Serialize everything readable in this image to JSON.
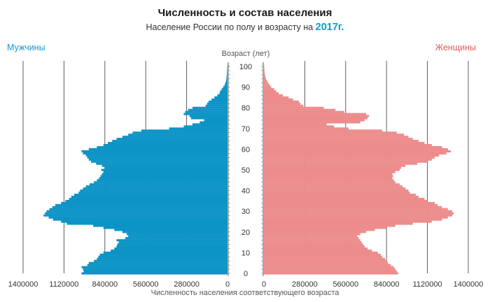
{
  "chart_data": {
    "type": "bar",
    "orientation": "horizontal",
    "layout": "population-pyramid",
    "title": "Численность и состав населения",
    "subtitle_prefix": "Население России по полу и возрасту на ",
    "subtitle_year": "2017г.",
    "male_label": "Мужчины",
    "female_label": "Женщины",
    "y_axis_label": "Возраст (лет)",
    "x_axis_label": "Численность населения соответствующего возраста",
    "age_ticks": [
      0,
      10,
      20,
      30,
      40,
      50,
      60,
      70,
      80,
      90,
      100
    ],
    "male_ticks": [
      1400000,
      1120000,
      840000,
      560000,
      280000,
      0
    ],
    "male_tick_labels": [
      "1400000",
      "1120000",
      "840000",
      "560000",
      "280000",
      "0"
    ],
    "female_ticks": [
      0,
      280000,
      560000,
      840000,
      1120000,
      1400000
    ],
    "female_tick_labels": [
      "0",
      "280000",
      "560000",
      "840000",
      "1120000",
      "1400000"
    ],
    "xlim": [
      0,
      1400000
    ],
    "ylim": [
      0,
      100
    ],
    "grid": "vertical",
    "colors": {
      "male": "#0c94c6",
      "female": "#ec8c8c",
      "male_label": "#1597c9",
      "female_label": "#dd5b5b",
      "year": "#1597c9"
    },
    "ages": [
      0,
      1,
      2,
      3,
      4,
      5,
      6,
      7,
      8,
      9,
      10,
      11,
      12,
      13,
      14,
      15,
      16,
      17,
      18,
      19,
      20,
      21,
      22,
      23,
      24,
      25,
      26,
      27,
      28,
      29,
      30,
      31,
      32,
      33,
      34,
      35,
      36,
      37,
      38,
      39,
      40,
      41,
      42,
      43,
      44,
      45,
      46,
      47,
      48,
      49,
      50,
      51,
      52,
      53,
      54,
      55,
      56,
      57,
      58,
      59,
      60,
      61,
      62,
      63,
      64,
      65,
      66,
      67,
      68,
      69,
      70,
      71,
      72,
      73,
      74,
      75,
      76,
      77,
      78,
      79,
      80,
      81,
      82,
      83,
      84,
      85,
      86,
      87,
      88,
      89,
      90,
      91,
      92,
      93,
      94,
      95,
      96,
      97,
      98,
      99,
      100
    ],
    "series": [
      {
        "name": "Мужчины",
        "values": [
          1000000,
          985000,
          990000,
          1000000,
          960000,
          950000,
          915000,
          895000,
          885000,
          875000,
          850000,
          800000,
          775000,
          760000,
          755000,
          745000,
          760000,
          700000,
          680000,
          690000,
          720000,
          775000,
          850000,
          920000,
          1100000,
          1140000,
          1195000,
          1225000,
          1260000,
          1250000,
          1240000,
          1220000,
          1200000,
          1180000,
          1140000,
          1110000,
          1085000,
          1070000,
          1050000,
          1020000,
          1010000,
          990000,
          970000,
          945000,
          915000,
          895000,
          880000,
          870000,
          860000,
          850000,
          865000,
          840000,
          860000,
          900000,
          935000,
          950000,
          960000,
          970000,
          990000,
          1000000,
          950000,
          895000,
          850000,
          820000,
          790000,
          760000,
          720000,
          680000,
          650000,
          590000,
          400000,
          300000,
          240000,
          190000,
          160000,
          250000,
          260000,
          300000,
          290000,
          270000,
          240000,
          150000,
          140000,
          130000,
          110000,
          90000,
          70000,
          55000,
          50000,
          40000,
          30000,
          20000,
          15000,
          10000,
          8000,
          6000,
          5000,
          4000,
          3000,
          2000,
          1000
        ]
      },
      {
        "name": "Женщины",
        "values": [
          920000,
          910000,
          900000,
          890000,
          870000,
          850000,
          840000,
          830000,
          810000,
          800000,
          780000,
          740000,
          710000,
          690000,
          680000,
          670000,
          660000,
          650000,
          640000,
          660000,
          700000,
          760000,
          840000,
          900000,
          1020000,
          1150000,
          1220000,
          1260000,
          1290000,
          1300000,
          1290000,
          1260000,
          1220000,
          1190000,
          1170000,
          1120000,
          1100000,
          1060000,
          1040000,
          1000000,
          990000,
          970000,
          950000,
          930000,
          900000,
          890000,
          880000,
          885000,
          880000,
          900000,
          930000,
          940000,
          970000,
          1050000,
          1120000,
          1150000,
          1170000,
          1200000,
          1250000,
          1280000,
          1260000,
          1220000,
          1150000,
          1100000,
          1060000,
          1020000,
          990000,
          960000,
          910000,
          810000,
          580000,
          480000,
          430000,
          660000,
          690000,
          710000,
          720000,
          700000,
          550000,
          490000,
          410000,
          270000,
          250000,
          240000,
          200000,
          170000,
          130000,
          100000,
          85000,
          70000,
          50000,
          40000,
          30000,
          22000,
          15000,
          10000,
          7000,
          5000,
          4000,
          3000,
          2000
        ]
      }
    ]
  }
}
